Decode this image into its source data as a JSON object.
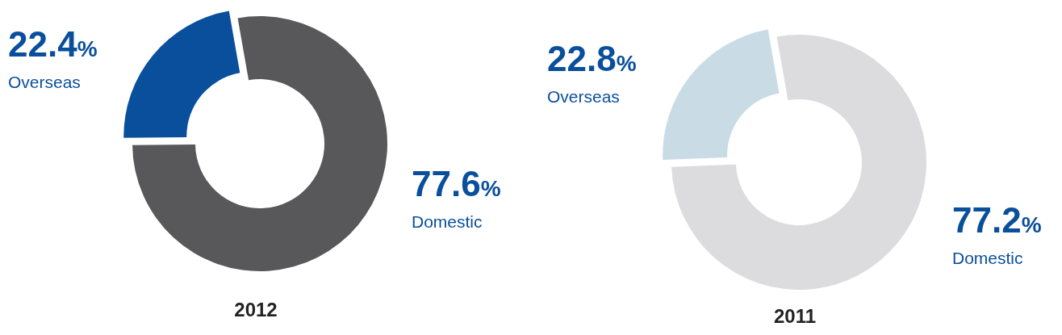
{
  "chart_data": [
    {
      "type": "donut",
      "title": "2012",
      "categories": [
        "Domestic",
        "Overseas"
      ],
      "values": [
        77.6,
        22.4
      ],
      "colors": [
        "#58585a",
        "#0a4f9c"
      ],
      "value_labels": [
        "77.6%",
        "22.4%"
      ]
    },
    {
      "type": "donut",
      "title": "2011",
      "categories": [
        "Domestic",
        "Overseas"
      ],
      "values": [
        77.2,
        22.8
      ],
      "colors": [
        "#dcdcde",
        "#c9dce6"
      ],
      "value_labels": [
        "77.2%",
        "22.8%"
      ]
    }
  ]
}
